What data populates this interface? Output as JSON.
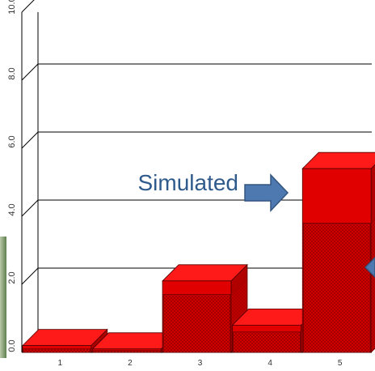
{
  "chart_data": {
    "type": "bar",
    "style": "3d",
    "categories": [
      "1",
      "2",
      "3",
      "4",
      "5"
    ],
    "series": [
      {
        "name": "",
        "values": [
          0.2,
          0.1,
          2.1,
          0.8,
          5.4
        ]
      },
      {
        "name": "",
        "values": [
          0.1,
          0.05,
          1.7,
          0.6,
          3.8
        ]
      }
    ],
    "yticks": [
      "0.0",
      "2.0",
      "4.0",
      "6.0",
      "8.0",
      "10.0"
    ],
    "ylim": [
      0,
      10
    ],
    "grid": true,
    "annotation": "Simulated",
    "colors": {
      "bar": "#e00000",
      "bar_top": "#ff1a1a",
      "bar_side": "#b00000",
      "stroke": "#500000",
      "arrow": "#4e79b0",
      "arrow_stroke": "#34557f",
      "annotation_text": "#2f5a8c",
      "wall_shading": "#6f8f5f"
    }
  }
}
